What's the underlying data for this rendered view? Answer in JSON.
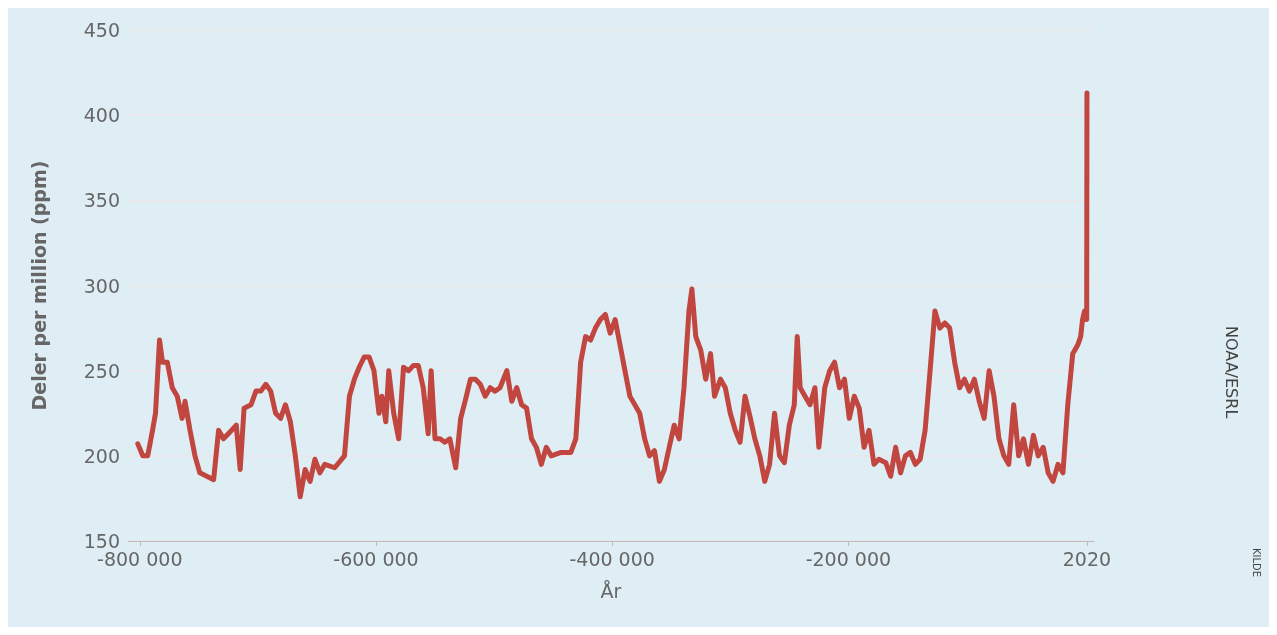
{
  "chart_data": {
    "type": "line",
    "xlabel": "År",
    "ylabel": "Deler per million (ppm)",
    "annotations": [
      "KILDE",
      "NOAA/ESRL"
    ],
    "xlim": [
      -810000,
      8000
    ],
    "ylim": [
      150,
      450
    ],
    "xticks": [
      {
        "value": -800000,
        "label": "-800 000"
      },
      {
        "value": -600000,
        "label": "-600 000"
      },
      {
        "value": -400000,
        "label": "-400 000"
      },
      {
        "value": -200000,
        "label": "-200 000"
      },
      2020
    ],
    "yticks": [
      150,
      200,
      250,
      300,
      350,
      400,
      450
    ],
    "grid": "y",
    "marker": "none",
    "line_style": "solid",
    "series": [
      {
        "color": "#c0463f",
        "x": [
          -801700,
          -797500,
          -793300,
          -789200,
          -786700,
          -783300,
          -780800,
          -776700,
          -772500,
          -768300,
          -764200,
          -761700,
          -757500,
          -753300,
          -749200,
          -743300,
          -737500,
          -733300,
          -729200,
          -725000,
          -718300,
          -715000,
          -711700,
          -705800,
          -701700,
          -697500,
          -693300,
          -689200,
          -685000,
          -680800,
          -676700,
          -672500,
          -668300,
          -664200,
          -660000,
          -655800,
          -651700,
          -647500,
          -643300,
          -635000,
          -626700,
          -622500,
          -618300,
          -614200,
          -610000,
          -605800,
          -601700,
          -597500,
          -595000,
          -591700,
          -589200,
          -585000,
          -580800,
          -576700,
          -572500,
          -568300,
          -564200,
          -560000,
          -555800,
          -553300,
          -550000,
          -545800,
          -541700,
          -537500,
          -532500,
          -528300,
          -524200,
          -520000,
          -515800,
          -511700,
          -507500,
          -503300,
          -499200,
          -495000,
          -489200,
          -485000,
          -480800,
          -476700,
          -472500,
          -468300,
          -464200,
          -460000,
          -455800,
          -451700,
          -443300,
          -435000,
          -430800,
          -426700,
          -422500,
          -418300,
          -414200,
          -410000,
          -405800,
          -401700,
          -397500,
          -393300,
          -389200,
          -385000,
          -380800,
          -376700,
          -372500,
          -368300,
          -364200,
          -360000,
          -355800,
          -351700,
          -347500,
          -343300,
          -339200,
          -335000,
          -332500,
          -329200,
          -325000,
          -320800,
          -316700,
          -313300,
          -308300,
          -304200,
          -300000,
          -295800,
          -291700,
          -287500,
          -283300,
          -279200,
          -275000,
          -270800,
          -266700,
          -262500,
          -258300,
          -254200,
          -250000,
          -245800,
          -243300,
          -240800,
          -236700,
          -232500,
          -228300,
          -225000,
          -220000,
          -215800,
          -211700,
          -207500,
          -203300,
          -199200,
          -195000,
          -190800,
          -186700,
          -182500,
          -178300,
          -174200,
          -168300,
          -164200,
          -160000,
          -155800,
          -151700,
          -147500,
          -143300,
          -139200,
          -135000,
          -130800,
          -126700,
          -122500,
          -118300,
          -114200,
          -110000,
          -105800,
          -101700,
          -97500,
          -93300,
          -89200,
          -85000,
          -80800,
          -76700,
          -72500,
          -68300,
          -64200,
          -60000,
          -55800,
          -51700,
          -47500,
          -43300,
          -39200,
          -35000,
          -30800,
          -26700,
          -22500,
          -18300,
          -14200,
          -10000,
          -5800,
          -3300,
          -1700,
          0,
          1800,
          2020
        ],
        "values": [
          207,
          200,
          200,
          215,
          225,
          268,
          255,
          255,
          240,
          235,
          222,
          232,
          215,
          200,
          190,
          188,
          186,
          215,
          210,
          213,
          218,
          192,
          228,
          230,
          238,
          238,
          242,
          238,
          225,
          222,
          230,
          220,
          200,
          176,
          192,
          185,
          198,
          190,
          195,
          193,
          200,
          235,
          245,
          252,
          258,
          258,
          250,
          225,
          235,
          220,
          250,
          225,
          210,
          252,
          250,
          253,
          253,
          240,
          213,
          250,
          210,
          210,
          208,
          210,
          193,
          222,
          233,
          245,
          245,
          242,
          235,
          240,
          238,
          240,
          250,
          232,
          240,
          230,
          228,
          210,
          205,
          195,
          205,
          200,
          202,
          202,
          210,
          255,
          270,
          268,
          275,
          280,
          283,
          272,
          280,
          265,
          250,
          235,
          230,
          225,
          210,
          200,
          203,
          185,
          192,
          205,
          218,
          210,
          240,
          285,
          298,
          270,
          262,
          245,
          260,
          235,
          245,
          240,
          225,
          215,
          208,
          235,
          223,
          210,
          200,
          185,
          195,
          225,
          200,
          196,
          218,
          230,
          270,
          240,
          235,
          230,
          240,
          205,
          240,
          250,
          255,
          240,
          245,
          222,
          235,
          228,
          205,
          215,
          195,
          198,
          196,
          188,
          205,
          190,
          200,
          202,
          195,
          198,
          215,
          250,
          285,
          275,
          278,
          275,
          255,
          240,
          245,
          238,
          245,
          232,
          222,
          250,
          235,
          210,
          200,
          195,
          230,
          200,
          210,
          195,
          212,
          200,
          205,
          190,
          185,
          195,
          190,
          230,
          260,
          265,
          270,
          280,
          285,
          280,
          413
        ]
      }
    ]
  }
}
